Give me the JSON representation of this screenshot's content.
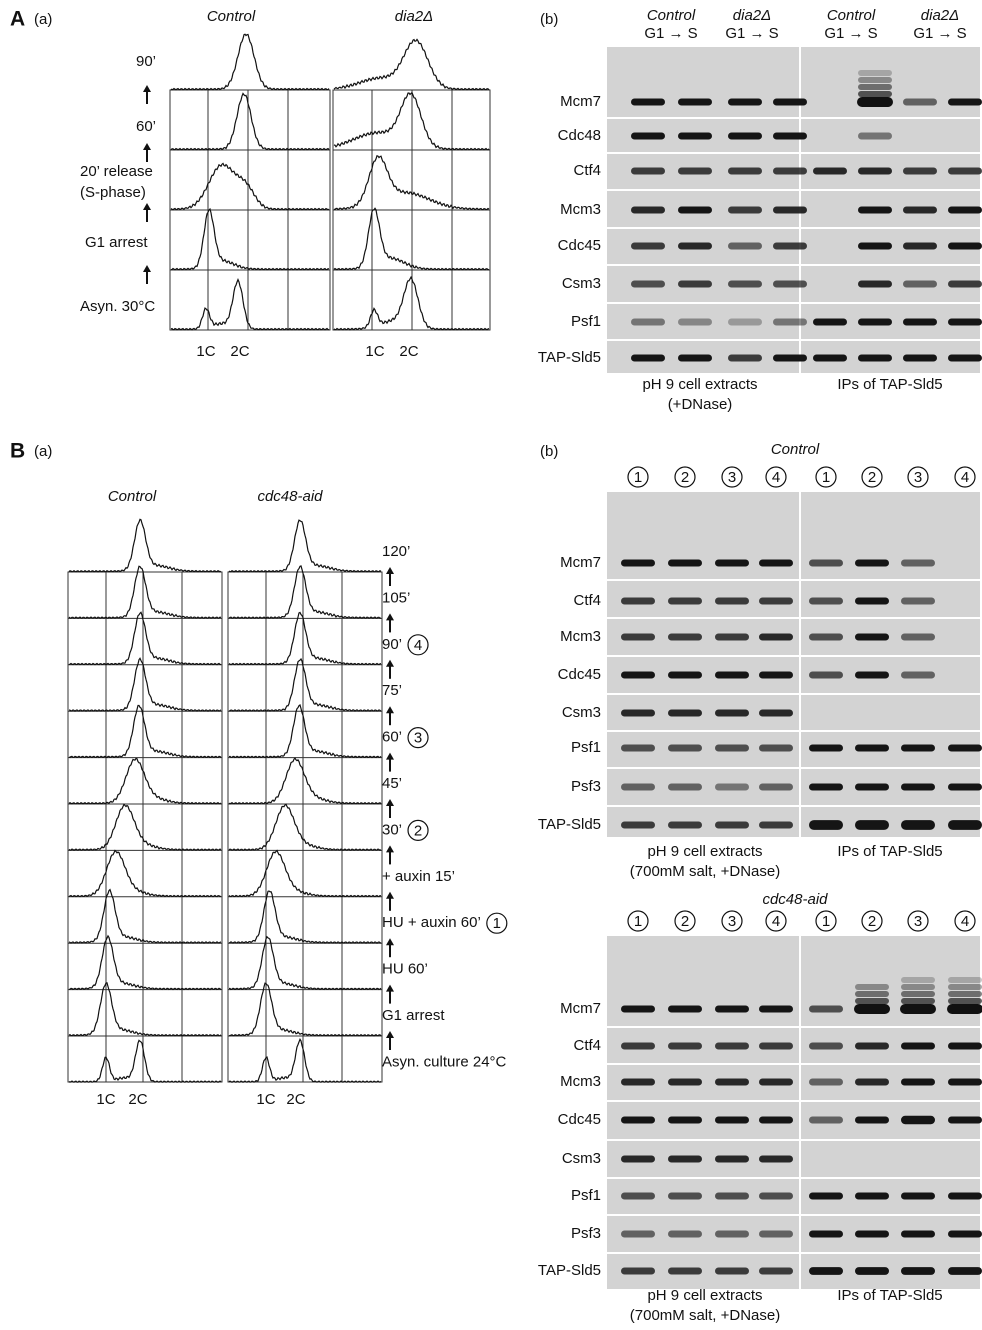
{
  "panel_a": {
    "label": "A",
    "flow": {
      "label": "(a)",
      "strains": [
        "Control",
        "dia2Δ"
      ],
      "timepoints": [
        "90’",
        "60’",
        "20’ release",
        "(S-phase)",
        "G1 arrest",
        "Asyn. 30°C"
      ],
      "dna_content": [
        "1C",
        "2C"
      ]
    },
    "blot": {
      "label": "(b)",
      "lanes": [
        {
          "strain": "Control",
          "phase": "G1 → S"
        },
        {
          "strain": "dia2Δ",
          "phase": "G1 → S"
        },
        {
          "strain": "Control",
          "phase": "G1 → S"
        },
        {
          "strain": "dia2Δ",
          "phase": "G1 → S"
        }
      ],
      "proteins": [
        "Mcm7",
        "Cdc48",
        "Ctf4",
        "Mcm3",
        "Cdc45",
        "Csm3",
        "Psf1",
        "TAP-Sld5"
      ],
      "footers": {
        "extracts": [
          "pH 9 cell extracts",
          "(+DNase)"
        ],
        "ips": "IPs of TAP-Sld5"
      }
    }
  },
  "panel_b": {
    "label": "B",
    "flow": {
      "label": "(a)",
      "strains": [
        "Control",
        "cdc48-aid"
      ],
      "timepoints": [
        {
          "label": "120’"
        },
        {
          "label": "105’"
        },
        {
          "label": "90’",
          "marker": "4"
        },
        {
          "label": "75’"
        },
        {
          "label": "60’",
          "marker": "3"
        },
        {
          "label": "45’"
        },
        {
          "label": "30’",
          "marker": "2"
        },
        {
          "label": "+ auxin 15’"
        },
        {
          "label": "HU + auxin 60’",
          "marker": "1"
        },
        {
          "label": "HU 60’"
        },
        {
          "label": "G1 arrest"
        },
        {
          "label": "Asyn. culture 24°C"
        }
      ],
      "dna_content": [
        "1C",
        "2C"
      ]
    },
    "blots": [
      {
        "label": "(b)",
        "title": "Control",
        "lanes": [
          "1",
          "2",
          "3",
          "4",
          "1",
          "2",
          "3",
          "4"
        ],
        "proteins": [
          "Mcm7",
          "Ctf4",
          "Mcm3",
          "Cdc45",
          "Csm3",
          "Psf1",
          "Psf3",
          "TAP-Sld5"
        ],
        "footers": {
          "extracts": [
            "pH 9 cell extracts",
            "(700mM salt, +DNase)"
          ],
          "ips": "IPs of TAP-Sld5"
        }
      },
      {
        "title": "cdc48-aid",
        "lanes": [
          "1",
          "2",
          "3",
          "4",
          "1",
          "2",
          "3",
          "4"
        ],
        "proteins": [
          "Mcm7",
          "Ctf4",
          "Mcm3",
          "Cdc45",
          "Csm3",
          "Psf1",
          "Psf3",
          "TAP-Sld5"
        ],
        "footers": {
          "extracts": [
            "pH 9 cell extracts",
            "(700mM salt, +DNase)"
          ],
          "ips": "IPs of TAP-Sld5"
        }
      }
    ]
  }
}
